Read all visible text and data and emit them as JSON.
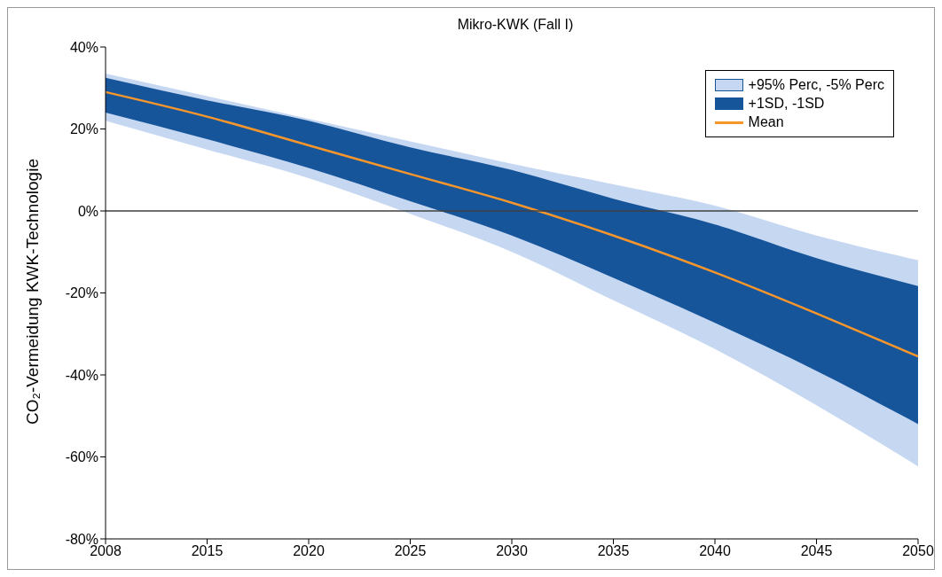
{
  "chart_data": {
    "type": "line",
    "title": "Mikro-KWK (Fall I)",
    "ylabel": "CO₂-Vermeidung KWK-Technologie",
    "categories": [
      "2008",
      "2015",
      "2020",
      "2025",
      "2030",
      "2035",
      "2040",
      "2045",
      "2050"
    ],
    "series": [
      {
        "name": "+95% Perc, -5% Perc",
        "type": "area",
        "color": "#c6d7f2",
        "values": [
          null,
          null,
          null,
          null,
          null,
          null,
          null,
          null,
          null
        ],
        "lower": [
          22,
          15,
          8,
          -0.7,
          -10,
          -21.8,
          -33.7,
          -47.4,
          -62.3
        ],
        "upper": [
          33.5,
          28,
          22.5,
          17,
          11.5,
          6.5,
          1.3,
          -6,
          -12
        ]
      },
      {
        "name": "+1SD, -1SD",
        "type": "area",
        "color": "#17559b",
        "values": [
          null,
          null,
          null,
          null,
          null,
          null,
          null,
          null,
          null
        ],
        "lower": [
          24,
          17.5,
          10.5,
          2.4,
          -6,
          -16.3,
          -27.3,
          -39,
          -52
        ],
        "upper": [
          32.5,
          27,
          22,
          15.5,
          10,
          3,
          -3.3,
          -11.5,
          -18.3
        ]
      },
      {
        "name": "Mean",
        "color": "#f7962b",
        "values": [
          29,
          23,
          16,
          9,
          2,
          -6,
          -15,
          -25,
          -35.5
        ]
      }
    ],
    "ylim": [
      -80,
      40
    ],
    "yticks": [
      {
        "value": -80,
        "label": "-80%"
      },
      {
        "value": -60,
        "label": "-60%"
      },
      {
        "value": -40,
        "label": "-40%"
      },
      {
        "value": -20,
        "label": "-20%"
      },
      {
        "value": 0,
        "label": "0%"
      },
      {
        "value": 20,
        "label": "20%"
      },
      {
        "value": 40,
        "label": "40%"
      }
    ],
    "ref_lines": [
      {
        "axis": "y",
        "value": 0,
        "color": "#404040"
      }
    ],
    "grid": false,
    "legend": "top right",
    "marker": "none"
  }
}
